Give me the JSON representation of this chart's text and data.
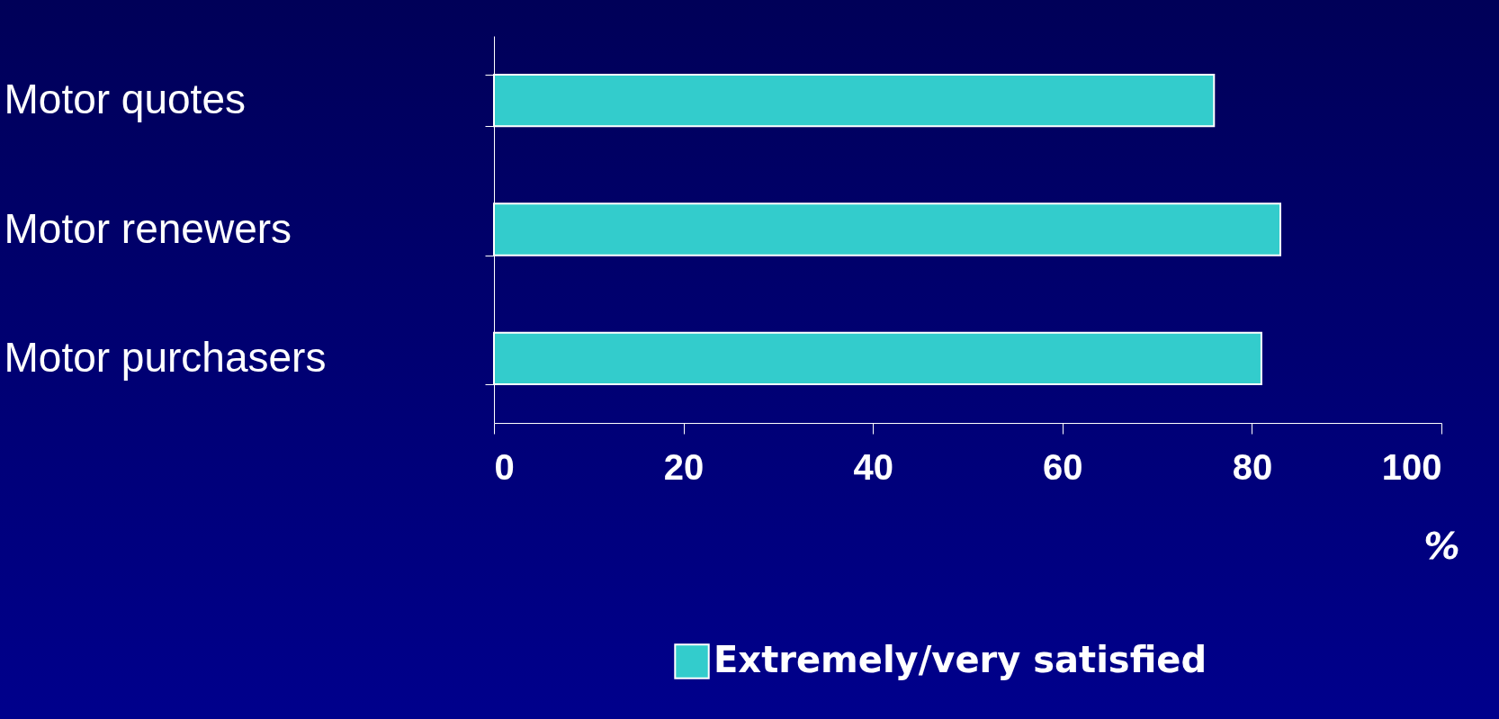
{
  "chart_data": {
    "type": "bar",
    "orientation": "horizontal",
    "categories": [
      "Motor quotes",
      "Motor renewers",
      "Motor purchasers"
    ],
    "series": [
      {
        "name": "Extremely/very satisfied",
        "color": "#33cccc",
        "values": [
          76,
          83,
          81
        ]
      }
    ],
    "xlim": [
      0,
      100
    ],
    "xticks": [
      0,
      20,
      40,
      60,
      80,
      100
    ],
    "xlabel": "%",
    "legend": "bottom",
    "grid": false
  }
}
